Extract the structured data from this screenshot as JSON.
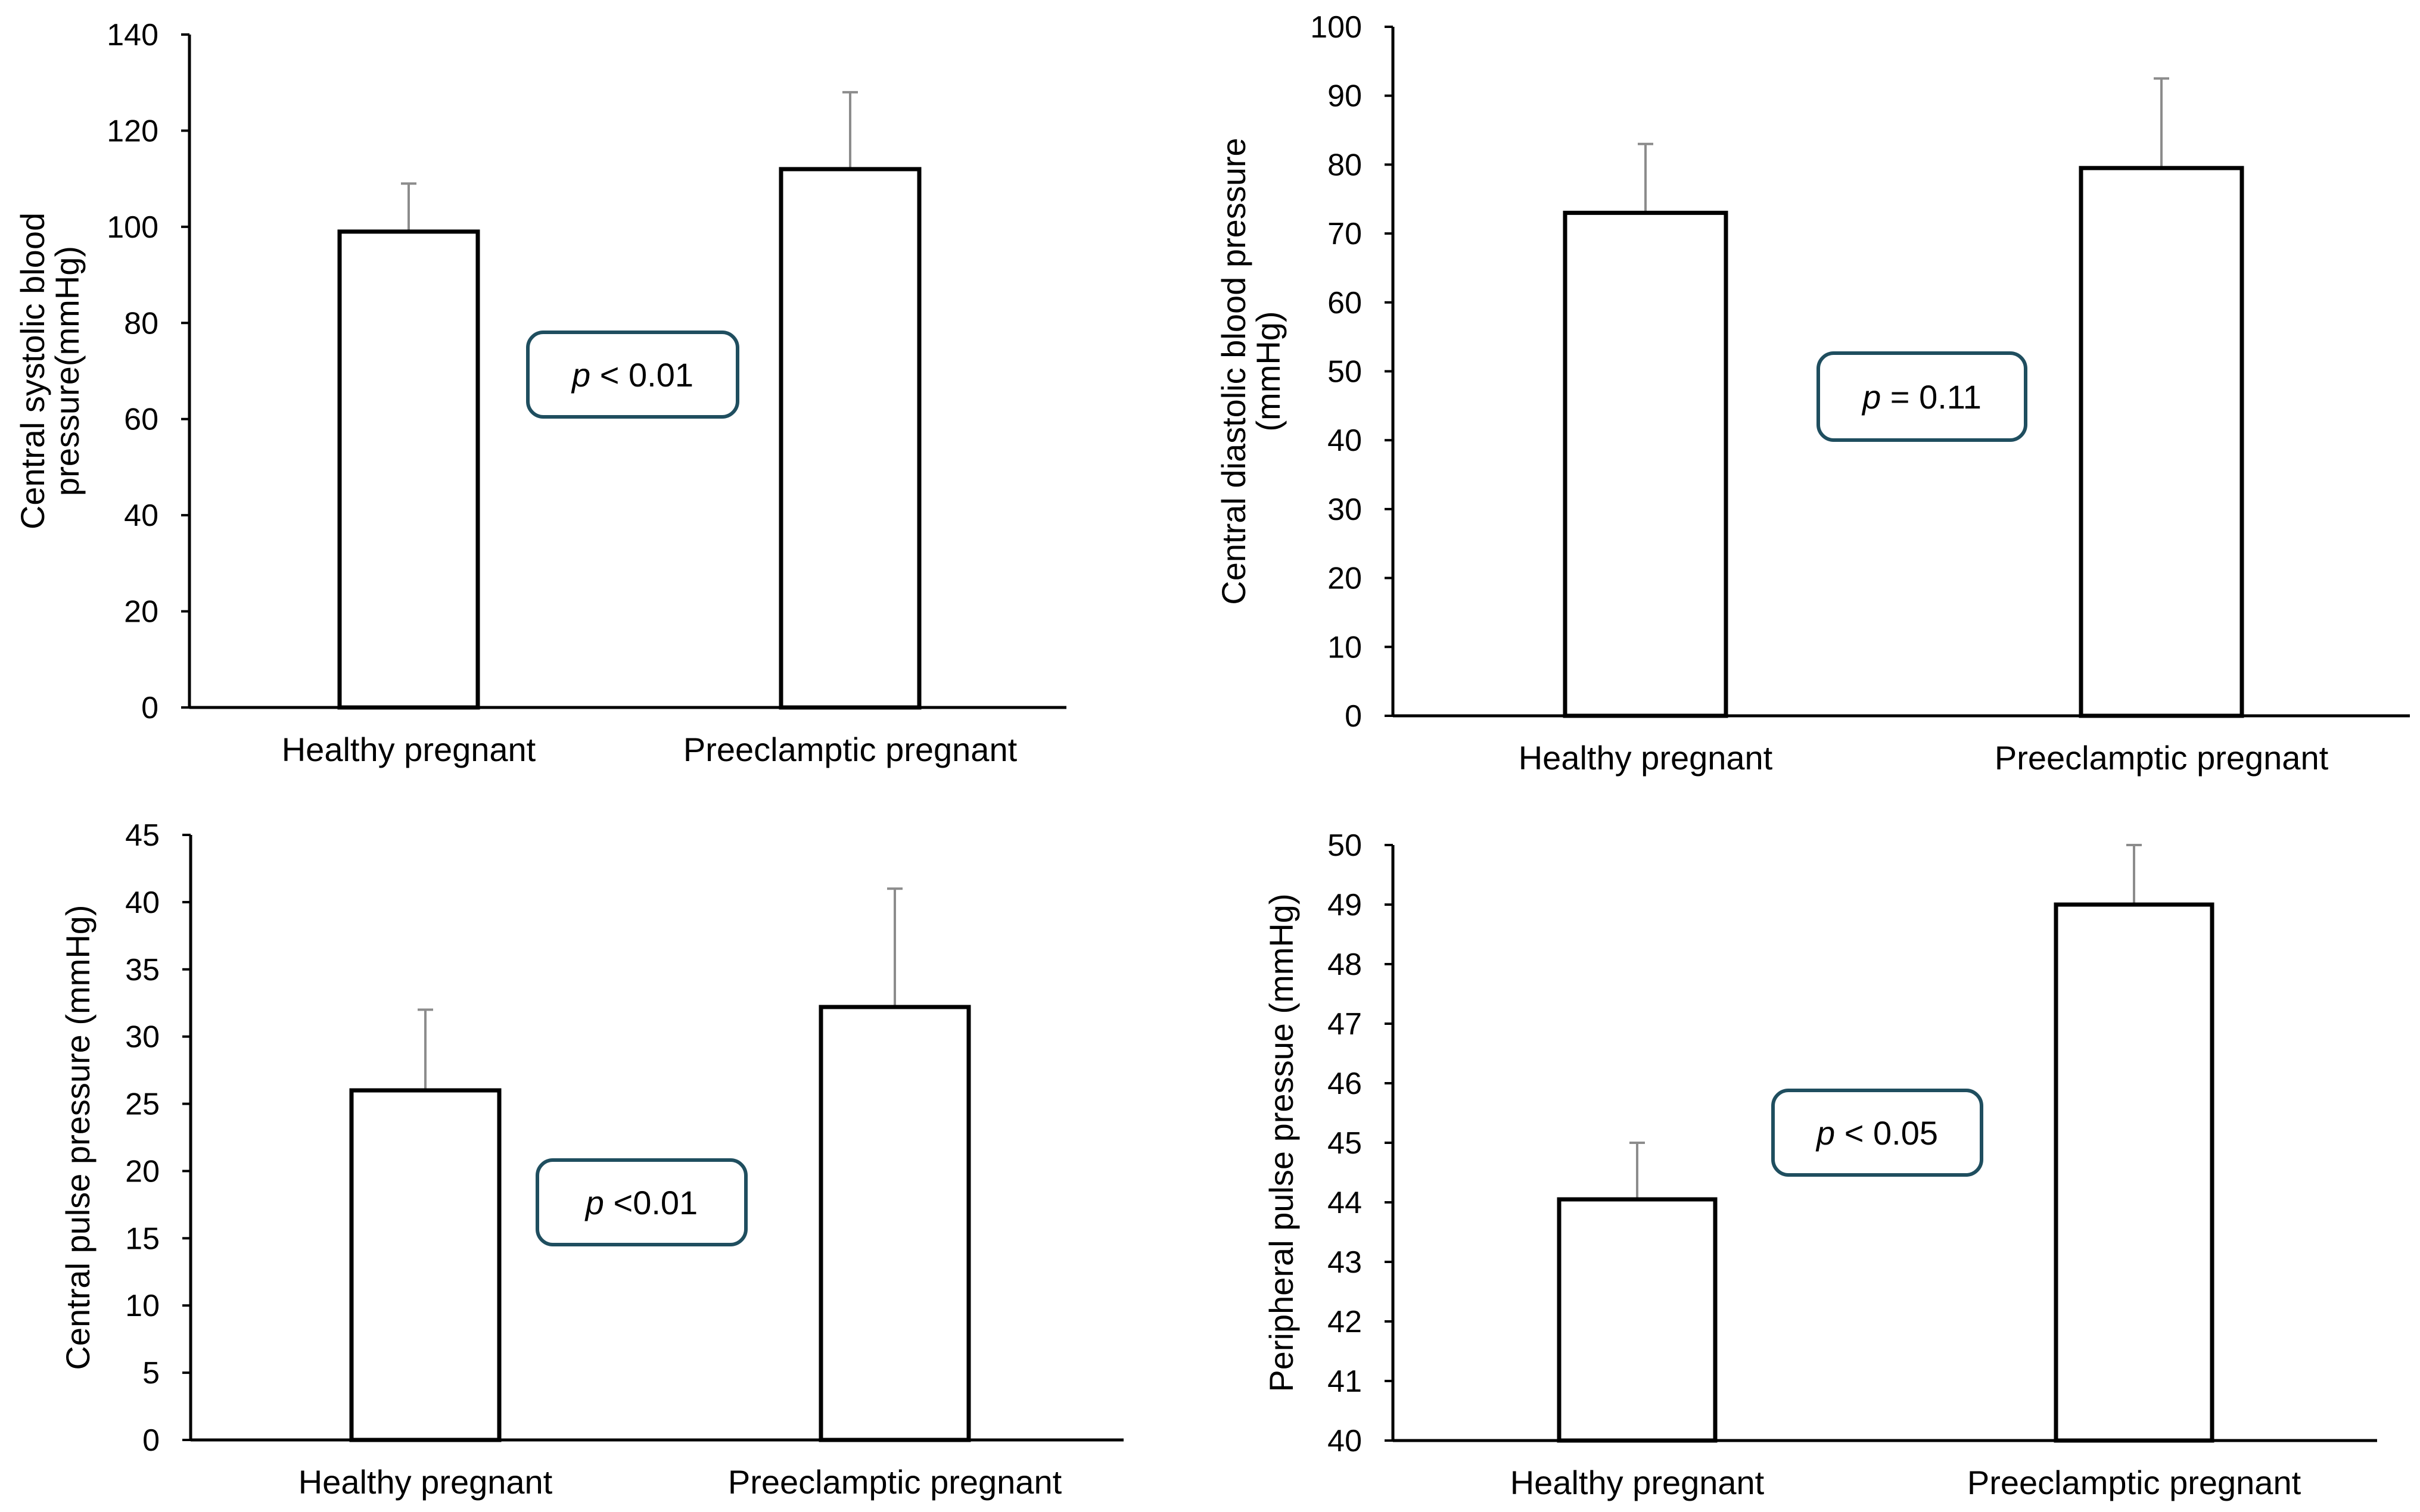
{
  "colors": {
    "bar_fill": "#ffffff",
    "bar_stroke": "#000000",
    "axis": "#000000",
    "errorbar": "#8c8c8c",
    "annotation_border": "#1f4e5f"
  },
  "chart_data": [
    {
      "type": "bar",
      "categories": [
        "Healthy pregnant",
        "Preeclamptic pregnant"
      ],
      "values": [
        99,
        112
      ],
      "errors": [
        10,
        16
      ],
      "ylabel": [
        "Central systolic blood",
        "pressure(mmHg)"
      ],
      "ylim": [
        0,
        140
      ],
      "yticks": [
        0,
        20,
        40,
        60,
        80,
        100,
        120,
        140
      ],
      "annotation": {
        "p": "p",
        "text": " < 0.01"
      }
    },
    {
      "type": "bar",
      "categories": [
        "Healthy pregnant",
        "Preeclamptic pregnant"
      ],
      "values": [
        73,
        79.5
      ],
      "errors": [
        10,
        13
      ],
      "ylabel": [
        "Central diastolic blood pressure",
        "(mmHg)"
      ],
      "ylim": [
        0,
        100
      ],
      "yticks": [
        0,
        10,
        20,
        30,
        40,
        50,
        60,
        70,
        80,
        90,
        100
      ],
      "annotation": {
        "p": "p",
        "text": " = 0.11"
      }
    },
    {
      "type": "bar",
      "categories": [
        "Healthy pregnant",
        "Preeclamptic pregnant"
      ],
      "values": [
        26,
        32.2
      ],
      "errors": [
        6,
        8.8
      ],
      "ylabel": [
        "Central pulse pressure (mmHg)"
      ],
      "ylim": [
        0,
        45
      ],
      "yticks": [
        0,
        5,
        10,
        15,
        20,
        25,
        30,
        35,
        40,
        45
      ],
      "annotation": {
        "p": "p",
        "text": " <0.01"
      }
    },
    {
      "type": "bar",
      "categories": [
        "Healthy pregnant",
        "Preeclamptic pregnant"
      ],
      "values": [
        44.05,
        49
      ],
      "errors": [
        0.95,
        1
      ],
      "ylabel": [
        "Peripheral pulse pressue (mmHg)"
      ],
      "ylim": [
        40,
        50
      ],
      "yticks": [
        40,
        41,
        42,
        43,
        44,
        45,
        46,
        47,
        48,
        49,
        50
      ],
      "annotation": {
        "p": "p",
        "text": " < 0.05"
      }
    }
  ]
}
